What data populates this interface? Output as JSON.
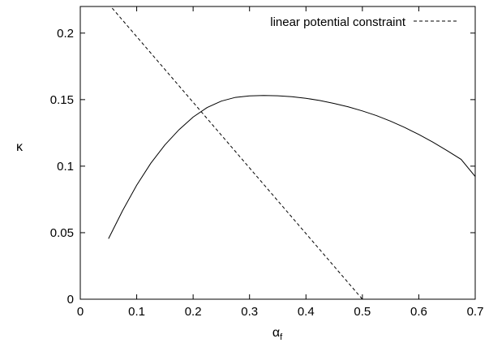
{
  "chart_data": {
    "type": "line",
    "xlabel": "α",
    "xlabel_sub": "f",
    "ylabel": "κ",
    "xlim": [
      0,
      0.7
    ],
    "ylim": [
      0,
      0.22
    ],
    "xticks": [
      0,
      0.1,
      0.2,
      0.3,
      0.4,
      0.5,
      0.6,
      0.7
    ],
    "xtick_labels": [
      "0",
      "0.1",
      "0.2",
      "0.3",
      "0.4",
      "0.5",
      "0.6",
      "0.7"
    ],
    "yticks": [
      0,
      0.05,
      0.1,
      0.15,
      0.2
    ],
    "ytick_labels": [
      "0",
      "0.05",
      "0.1",
      "0.15",
      "0.2"
    ],
    "grid": false,
    "legend_position": "top-right",
    "series": [
      {
        "style": "solid",
        "color": "#000000",
        "x": [
          0.05,
          0.075,
          0.1,
          0.125,
          0.15,
          0.175,
          0.2,
          0.225,
          0.25,
          0.275,
          0.3,
          0.325,
          0.35,
          0.375,
          0.4,
          0.425,
          0.45,
          0.475,
          0.5,
          0.525,
          0.55,
          0.575,
          0.6,
          0.625,
          0.65,
          0.675,
          0.7
        ],
        "y": [
          0.0455,
          0.0666,
          0.0857,
          0.1022,
          0.116,
          0.1274,
          0.1369,
          0.1441,
          0.1489,
          0.1517,
          0.1528,
          0.1531,
          0.1529,
          0.1522,
          0.151,
          0.1493,
          0.1471,
          0.1446,
          0.1415,
          0.138,
          0.1338,
          0.1291,
          0.1238,
          0.118,
          0.1117,
          0.1051,
          0.0922
        ]
      },
      {
        "name": "linear potential constraint",
        "style": "dashed",
        "color": "#000000",
        "x": [
          0.05,
          0.5
        ],
        "y": [
          0.222,
          0
        ]
      }
    ]
  }
}
